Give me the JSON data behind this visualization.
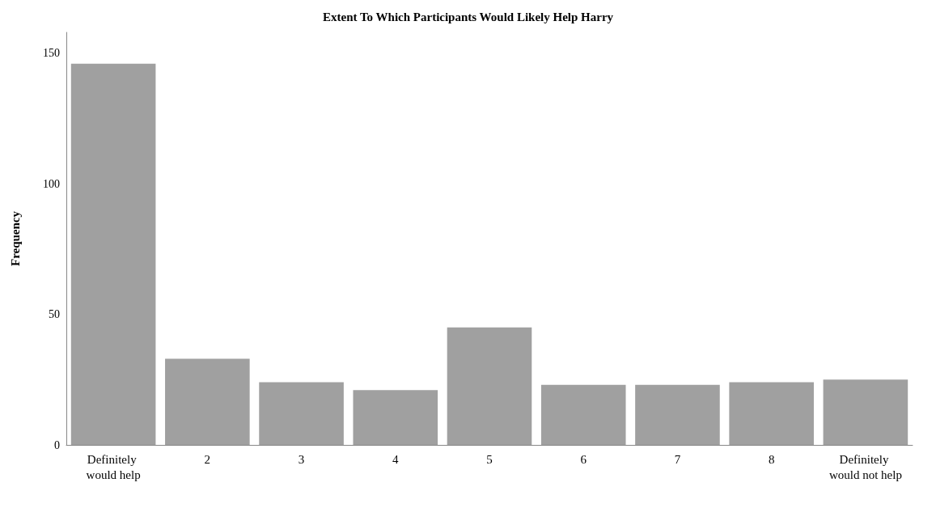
{
  "chart_data": {
    "type": "bar",
    "title": "Extent To Which Participants Would Likely Help Harry",
    "ylabel": "Frequency",
    "categories": [
      "Definitely would help",
      "2",
      "3",
      "4",
      "5",
      "6",
      "7",
      "8",
      "Definitely would not help"
    ],
    "values": [
      146,
      33,
      24,
      21,
      45,
      23,
      23,
      24,
      25
    ],
    "color": "#a0a0a0",
    "ylim": [
      0,
      158
    ],
    "yticks": [
      0,
      50,
      100,
      150
    ],
    "grid": false
  }
}
